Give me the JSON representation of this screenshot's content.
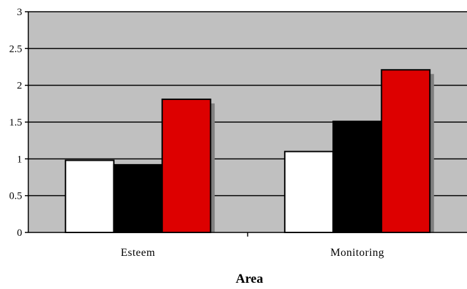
{
  "chart_data": {
    "type": "bar",
    "title": "",
    "xlabel": "Area",
    "ylabel": "",
    "ylim": [
      0,
      3
    ],
    "yticks": [
      "0",
      "0.5",
      "1",
      "1.5",
      "2",
      "2.5",
      "3"
    ],
    "categories": [
      "Esteem",
      "Monitoring"
    ],
    "series": [
      {
        "values": [
          0.98,
          1.1
        ],
        "color": "#ffffff"
      },
      {
        "values": [
          0.92,
          1.51
        ],
        "color": "#000000"
      },
      {
        "values": [
          1.81,
          2.21
        ],
        "color": "#dd0000"
      }
    ],
    "plot_background": "#c0c0c0",
    "grid": true,
    "legend": "none",
    "bar_shadow": true
  }
}
